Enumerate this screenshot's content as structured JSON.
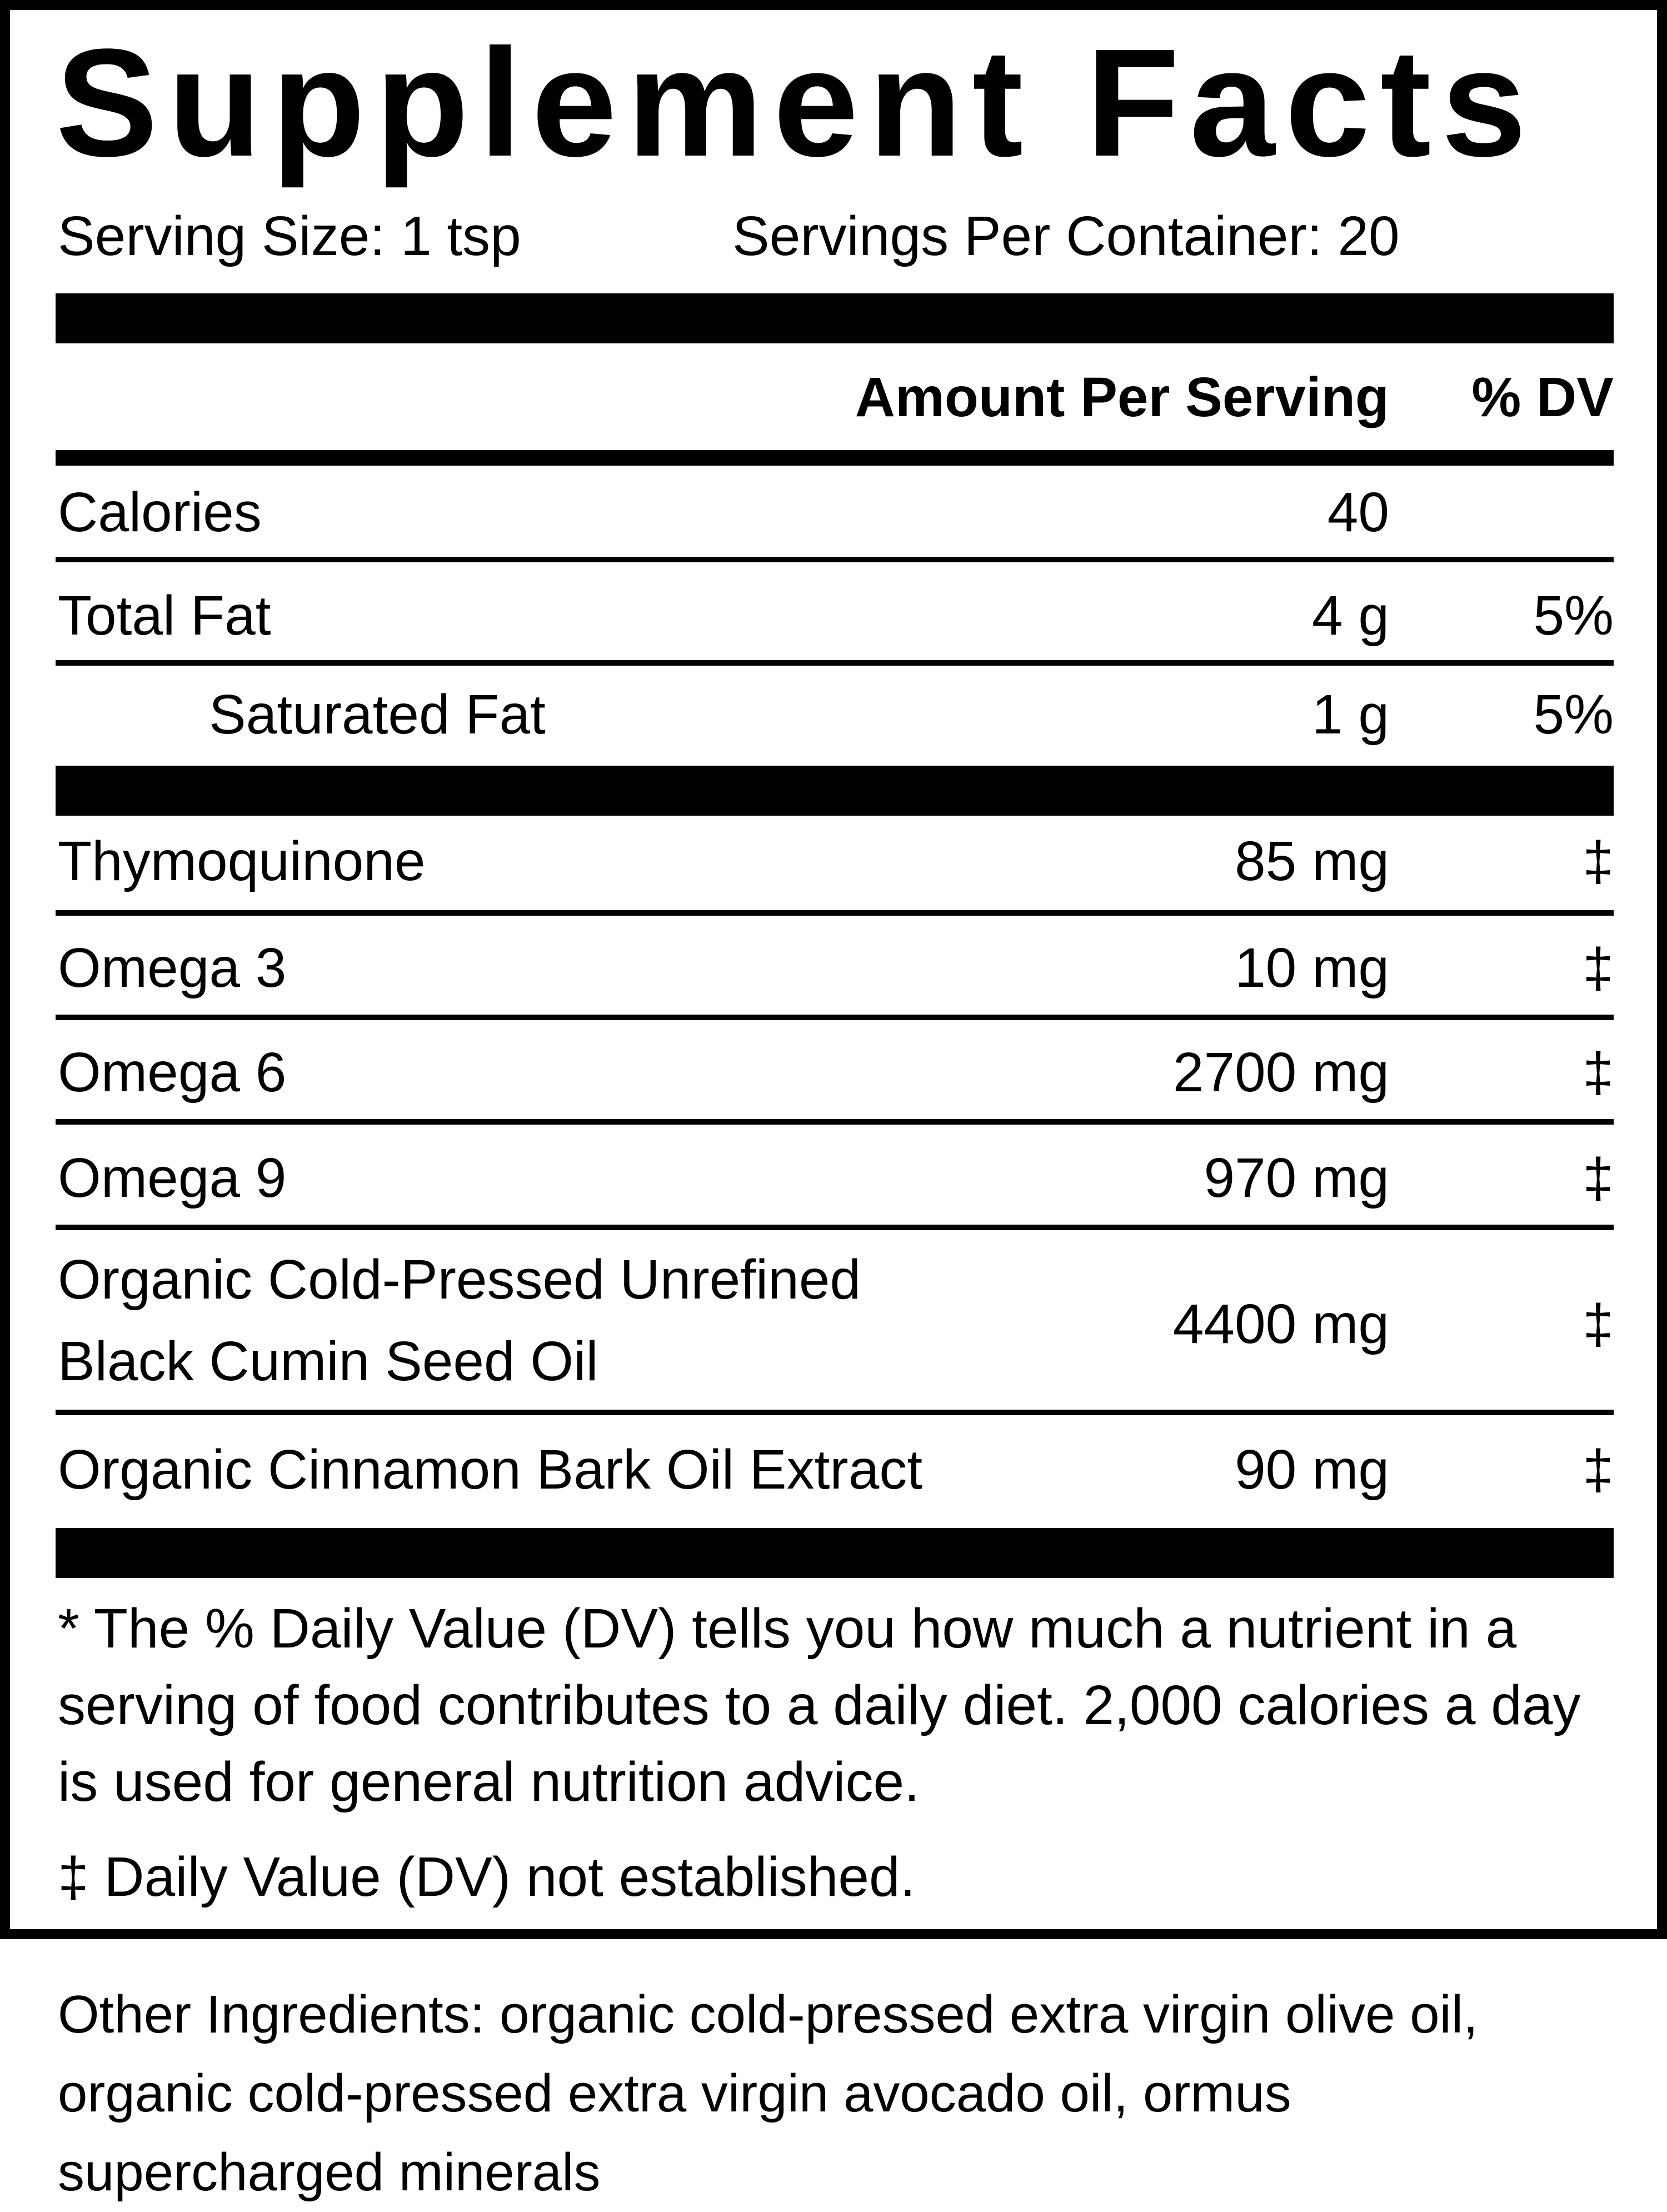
{
  "title": "Supplement Facts",
  "serving_size": "Serving Size: 1 tsp",
  "servings_per_container": "Servings Per Container: 20",
  "headers": {
    "amount": "Amount Per Serving",
    "dv": "% DV"
  },
  "rows": [
    {
      "name": "Calories",
      "amount": "40",
      "dv": ""
    },
    {
      "name": "Total Fat",
      "amount": "4 g",
      "dv": "5%"
    },
    {
      "name": "Saturated Fat",
      "amount": "1 g",
      "dv": "5%"
    },
    {
      "name": "Thymoquinone",
      "amount": "85 mg",
      "dv": "‡"
    },
    {
      "name": "Omega 3",
      "amount": "10 mg",
      "dv": "‡"
    },
    {
      "name": "Omega 6",
      "amount": "2700 mg",
      "dv": "‡"
    },
    {
      "name": "Omega 9",
      "amount": "970 mg",
      "dv": "‡"
    },
    {
      "name_line1": "Organic Cold-Pressed Unrefined",
      "name_line2": "Black Cumin Seed Oil",
      "amount": "4400 mg",
      "dv": "‡"
    },
    {
      "name": "Organic Cinnamon Bark Oil Extract",
      "amount": "90 mg",
      "dv": "‡"
    }
  ],
  "footnotes": {
    "dv_note": "* The % Daily Value (DV) tells you how much a nutrient in a serving of food contributes to a daily diet. 2,000 calories a day is used for general nutrition advice.",
    "not_established": "‡ Daily Value (DV) not established."
  },
  "other_ingredients": "Other Ingredients: organic cold-pressed extra virgin olive oil, organic cold-pressed extra virgin avocado oil, ormus supercharged minerals"
}
